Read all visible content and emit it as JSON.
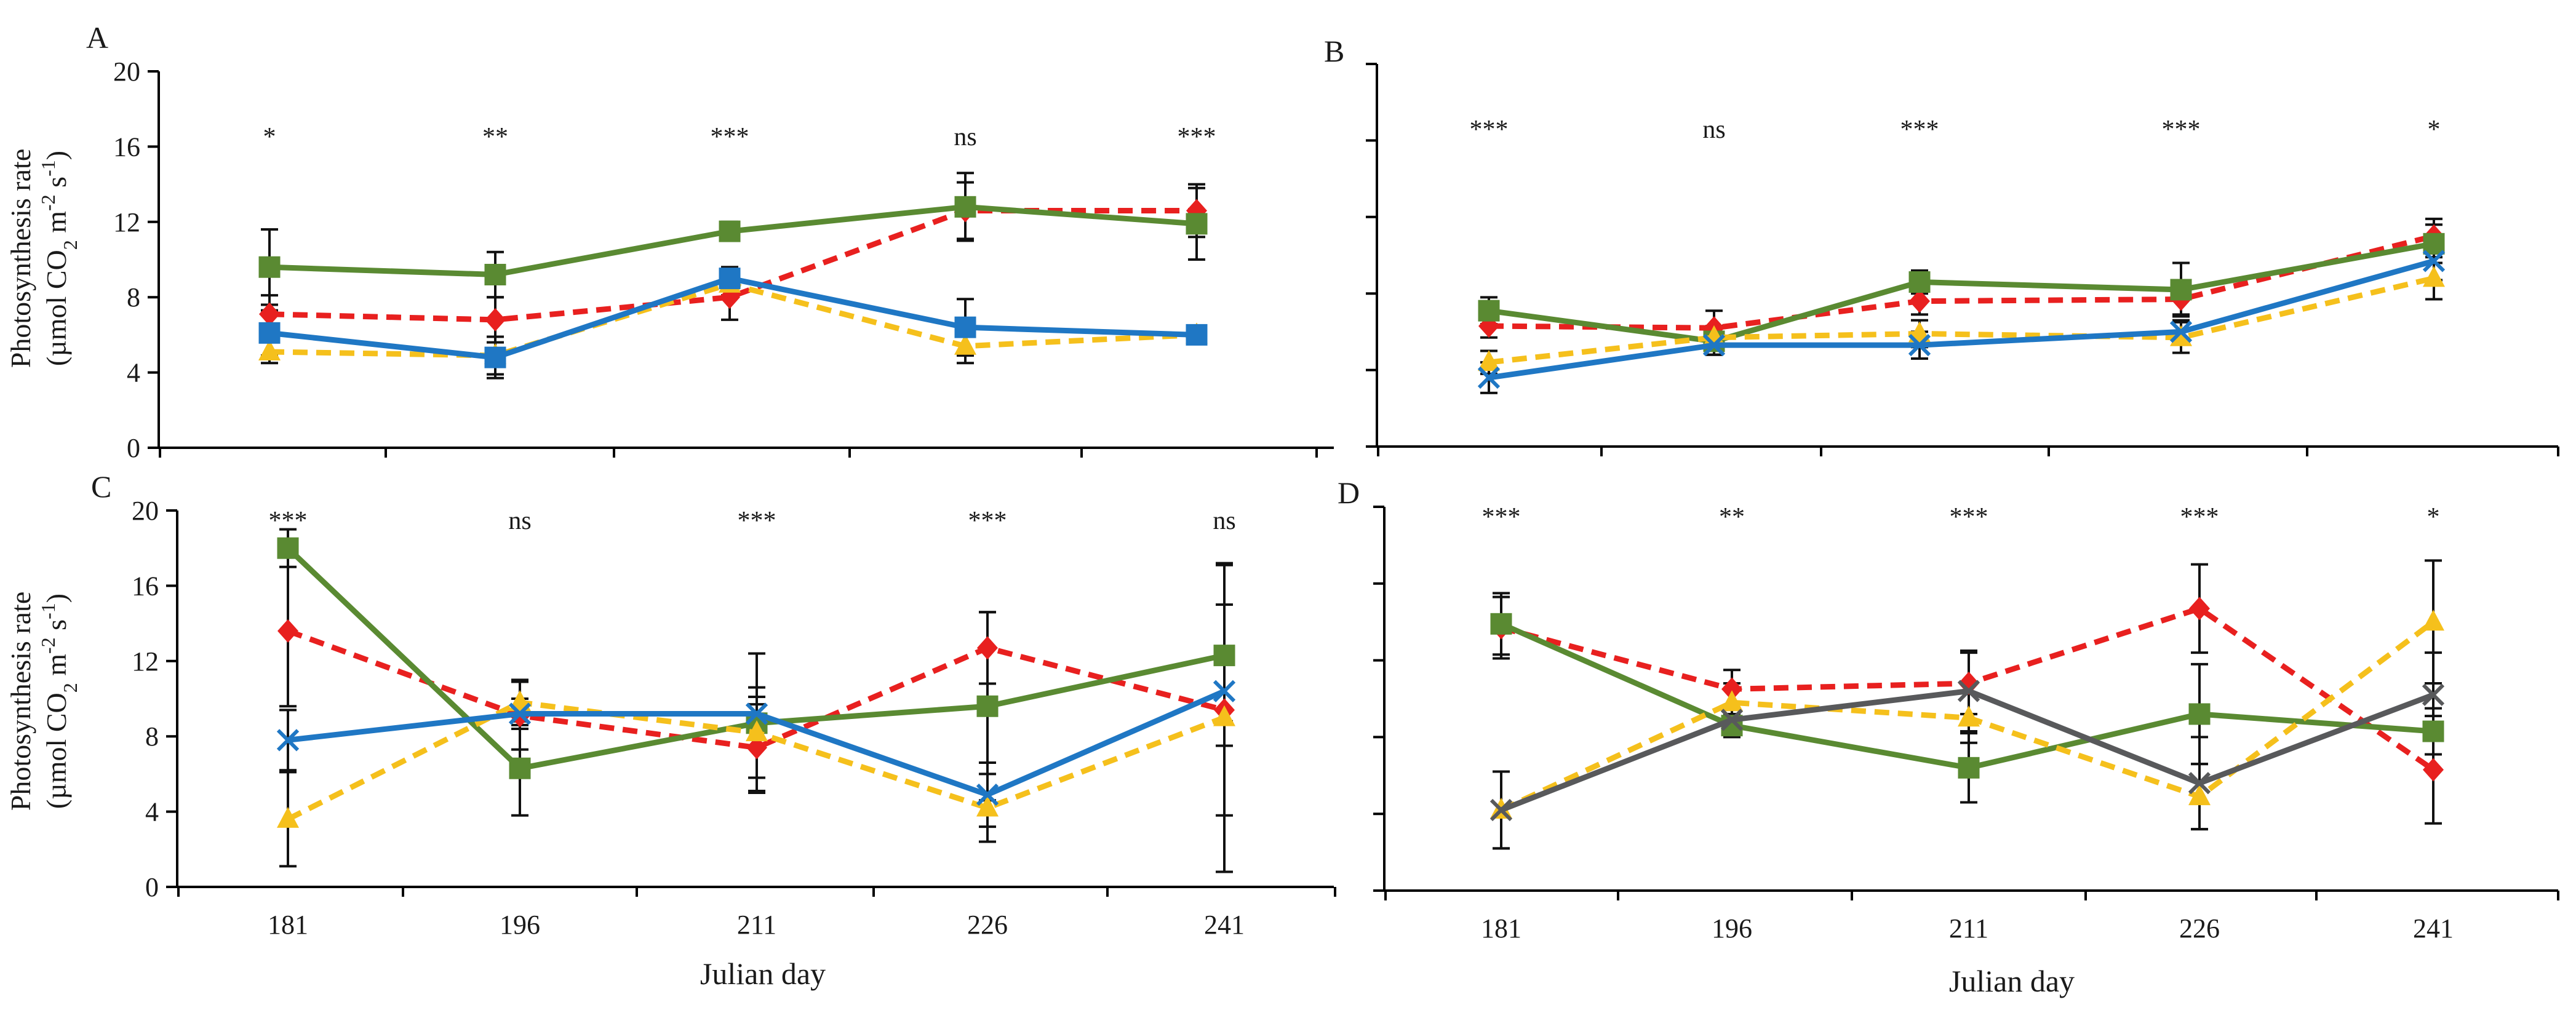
{
  "figure": {
    "ylabel_line1": "Photosynthesis rate",
    "ylabel_line2": "(µmol CO",
    "ylabel_sub": "2",
    "ylabel_mid": " m",
    "ylabel_sup1": "-2",
    "ylabel_s": " s",
    "ylabel_sup2": "-1",
    "ylabel_end": ")",
    "xlabel": "Julian day"
  },
  "colors": {
    "red": "#e8201f",
    "green": "#5a8a32",
    "blue": "#1f77c4",
    "yellow": "#f5c01c",
    "gray": "#58595b",
    "axis": "#000000"
  },
  "chart_data": [
    {
      "panel": "A",
      "type": "line",
      "x": [
        181,
        196,
        211,
        226,
        241
      ],
      "ylim": [
        0,
        20
      ],
      "yticks": [
        "0",
        "4",
        "8",
        "12",
        "16",
        "20"
      ],
      "show_y_tick_labels": true,
      "show_x_tick_labels": false,
      "significance": [
        "*",
        "**",
        "***",
        "ns",
        "***"
      ],
      "series": [
        {
          "color": "red",
          "dashed": true,
          "marker": "diamond",
          "values": [
            7.1,
            6.8,
            8.0,
            12.6,
            12.6
          ],
          "err": [
            1.0,
            1.2,
            1.2,
            1.5,
            1.4
          ]
        },
        {
          "color": "green",
          "dashed": false,
          "marker": "square",
          "values": [
            9.6,
            9.2,
            11.5,
            12.8,
            11.9
          ],
          "err": [
            2.0,
            1.2,
            0.5,
            1.8,
            1.9
          ]
        },
        {
          "color": "yellow",
          "dashed": true,
          "marker": "triangle",
          "values": [
            5.1,
            4.9,
            8.7,
            5.4,
            6.0
          ],
          "err": [
            0.6,
            1.0,
            0.6,
            0.9,
            0.3
          ]
        },
        {
          "color": "blue",
          "dashed": false,
          "marker": "square",
          "values": [
            6.1,
            4.8,
            9.0,
            6.4,
            6.0
          ],
          "err": [
            1.2,
            1.1,
            0.6,
            1.5,
            0.3
          ]
        }
      ]
    },
    {
      "panel": "B",
      "type": "line",
      "x": [
        181,
        196,
        211,
        226,
        241
      ],
      "ylim": [
        0,
        20
      ],
      "yticks": [
        "",
        "",
        "",
        "",
        "",
        ""
      ],
      "show_y_tick_labels": false,
      "show_x_tick_labels": false,
      "significance": [
        "***",
        "ns",
        "***",
        "***",
        "*"
      ],
      "series": [
        {
          "color": "red",
          "dashed": true,
          "marker": "diamond",
          "values": [
            6.3,
            6.2,
            7.6,
            7.7,
            11.0
          ],
          "err": [
            0.6,
            0.9,
            0.7,
            0.8,
            0.9
          ]
        },
        {
          "color": "green",
          "dashed": false,
          "marker": "square",
          "values": [
            7.1,
            5.5,
            8.6,
            8.2,
            10.6
          ],
          "err": [
            0.7,
            0.7,
            0.6,
            1.4,
            1.0
          ]
        },
        {
          "color": "yellow",
          "dashed": true,
          "marker": "triangle",
          "values": [
            4.4,
            5.7,
            5.9,
            5.7,
            8.8
          ],
          "err": [
            0.6,
            0.6,
            0.7,
            0.8,
            1.1
          ]
        },
        {
          "color": "blue",
          "dashed": false,
          "marker": "x",
          "values": [
            3.6,
            5.3,
            5.3,
            6.0,
            9.7
          ],
          "err": [
            0.8,
            0.5,
            0.7,
            0.6,
            1.0
          ]
        }
      ]
    },
    {
      "panel": "C",
      "type": "line",
      "x": [
        181,
        196,
        211,
        226,
        241
      ],
      "ylim": [
        0,
        20
      ],
      "yticks": [
        "0",
        "4",
        "8",
        "12",
        "16",
        "20"
      ],
      "show_y_tick_labels": true,
      "show_x_tick_labels": true,
      "xtick_labels": [
        "181",
        "196",
        "211",
        "226",
        "241"
      ],
      "significance": [
        "***",
        "ns",
        "***",
        "***",
        "ns"
      ],
      "series": [
        {
          "color": "red",
          "dashed": true,
          "marker": "diamond",
          "values": [
            13.6,
            9.1,
            7.4,
            12.7,
            9.4
          ],
          "err": [
            4.0,
            1.8,
            2.3,
            1.9,
            5.6
          ]
        },
        {
          "color": "green",
          "dashed": false,
          "marker": "square",
          "values": [
            18.0,
            6.3,
            8.7,
            9.6,
            12.3
          ],
          "err": [
            1.0,
            2.5,
            3.7,
            5.0,
            4.8
          ]
        },
        {
          "color": "yellow",
          "dashed": true,
          "marker": "triangle",
          "values": [
            3.6,
            9.8,
            8.2,
            4.2,
            9.0
          ],
          "err": [
            2.5,
            1.2,
            2.4,
            1.8,
            8.2
          ]
        },
        {
          "color": "blue",
          "dashed": false,
          "marker": "x",
          "values": [
            7.8,
            9.2,
            9.2,
            4.9,
            10.4
          ],
          "err": [
            1.6,
            0.8,
            0.9,
            1.7,
            1.6
          ]
        }
      ]
    },
    {
      "panel": "D",
      "type": "line",
      "x": [
        181,
        196,
        211,
        226,
        241
      ],
      "ylim": [
        0,
        20
      ],
      "yticks": [
        "",
        "",
        "",
        "",
        "",
        ""
      ],
      "show_y_tick_labels": false,
      "show_x_tick_labels": true,
      "xtick_labels": [
        "181",
        "196",
        "211",
        "226",
        "241"
      ],
      "significance": [
        "***",
        "**",
        "***",
        "***",
        "*"
      ],
      "series": [
        {
          "color": "red",
          "dashed": true,
          "marker": "diamond",
          "values": [
            13.7,
            10.5,
            10.8,
            14.7,
            6.3
          ],
          "err": [
            1.6,
            1.0,
            1.6,
            2.3,
            2.8
          ]
        },
        {
          "color": "green",
          "dashed": false,
          "marker": "square",
          "values": [
            13.9,
            8.6,
            6.4,
            9.2,
            8.3
          ],
          "err": [
            1.6,
            0.6,
            1.8,
            2.6,
            1.2
          ]
        },
        {
          "color": "yellow",
          "dashed": true,
          "marker": "triangle",
          "values": [
            4.2,
            9.8,
            9.0,
            4.9,
            14.0
          ],
          "err": [
            2.0,
            1.0,
            1.3,
            1.7,
            3.2
          ]
        },
        {
          "color": "gray",
          "dashed": false,
          "marker": "x",
          "values": [
            4.2,
            8.9,
            10.4,
            5.6,
            10.2
          ],
          "err": [
            2.0,
            0.6,
            2.1,
            2.4,
            2.2
          ]
        }
      ]
    }
  ]
}
